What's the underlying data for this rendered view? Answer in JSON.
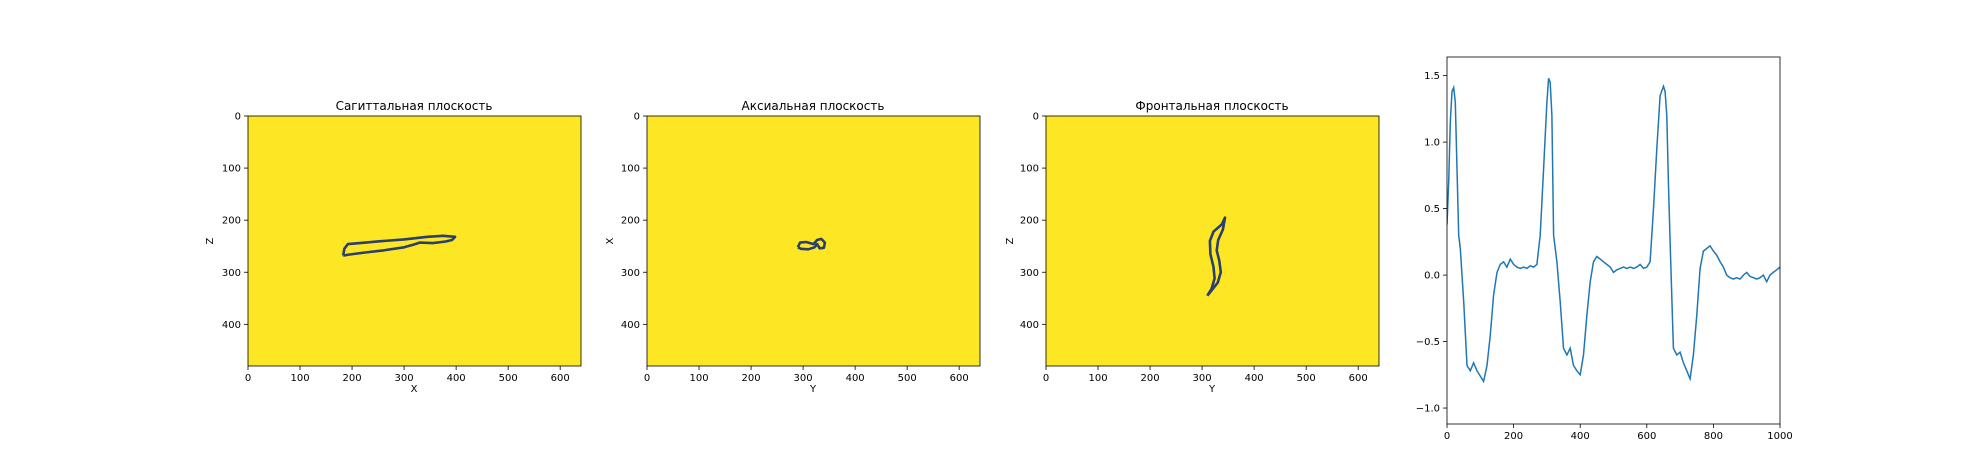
{
  "colors": {
    "background": "#ffffff",
    "image_fill": "#fde725",
    "contour": "#2a3f6b",
    "line": "#1f77b4"
  },
  "chart_data": [
    {
      "type": "heatmap",
      "title": "Сагиттальная плоскость",
      "xlabel": "X",
      "ylabel": "Z",
      "xlim": [
        0,
        640
      ],
      "ylim": [
        480,
        0
      ],
      "x_ticks": [
        "0",
        "100",
        "200",
        "300",
        "400",
        "500",
        "600"
      ],
      "y_ticks": [
        "0",
        "100",
        "200",
        "300",
        "400"
      ],
      "fill_value_color": "#fde725",
      "contour": [
        [
          183,
          268
        ],
        [
          185,
          255
        ],
        [
          192,
          246
        ],
        [
          215,
          244
        ],
        [
          260,
          240
        ],
        [
          300,
          237
        ],
        [
          345,
          232
        ],
        [
          375,
          230
        ],
        [
          398,
          232
        ],
        [
          392,
          238
        ],
        [
          380,
          241
        ],
        [
          355,
          244
        ],
        [
          330,
          243
        ],
        [
          318,
          247
        ],
        [
          300,
          252
        ],
        [
          260,
          258
        ],
        [
          225,
          262
        ],
        [
          195,
          266
        ],
        [
          183,
          268
        ]
      ]
    },
    {
      "type": "heatmap",
      "title": "Аксиальная плоскость",
      "xlabel": "Y",
      "ylabel": "X",
      "xlim": [
        0,
        640
      ],
      "ylim": [
        480,
        0
      ],
      "x_ticks": [
        "0",
        "100",
        "200",
        "300",
        "400",
        "500",
        "600"
      ],
      "y_ticks": [
        "0",
        "100",
        "200",
        "300",
        "400"
      ],
      "fill_value_color": "#fde725",
      "contour": [
        [
          290,
          252
        ],
        [
          294,
          243
        ],
        [
          306,
          242
        ],
        [
          320,
          246
        ],
        [
          327,
          238
        ],
        [
          335,
          236
        ],
        [
          342,
          243
        ],
        [
          340,
          253
        ],
        [
          332,
          254
        ],
        [
          327,
          246
        ],
        [
          322,
          252
        ],
        [
          310,
          256
        ],
        [
          296,
          255
        ],
        [
          290,
          252
        ]
      ]
    },
    {
      "type": "heatmap",
      "title": "Фронтальная плоскость",
      "xlabel": "Y",
      "ylabel": "Z",
      "xlim": [
        0,
        640
      ],
      "ylim": [
        480,
        0
      ],
      "x_ticks": [
        "0",
        "100",
        "200",
        "300",
        "400",
        "500",
        "600"
      ],
      "y_ticks": [
        "0",
        "100",
        "200",
        "300",
        "400"
      ],
      "fill_value_color": "#fde725",
      "contour": [
        [
          310,
          345
        ],
        [
          318,
          335
        ],
        [
          330,
          320
        ],
        [
          336,
          300
        ],
        [
          333,
          278
        ],
        [
          328,
          258
        ],
        [
          331,
          238
        ],
        [
          340,
          218
        ],
        [
          344,
          195
        ],
        [
          338,
          208
        ],
        [
          322,
          222
        ],
        [
          315,
          240
        ],
        [
          316,
          265
        ],
        [
          322,
          290
        ],
        [
          324,
          312
        ],
        [
          318,
          332
        ],
        [
          310,
          345
        ]
      ]
    },
    {
      "type": "line",
      "title": "",
      "xlabel": "",
      "ylabel": "",
      "xlim": [
        0,
        1000
      ],
      "ylim": [
        -1.12,
        1.64
      ],
      "x_ticks": [
        "0",
        "200",
        "400",
        "600",
        "800",
        "1000"
      ],
      "y_ticks": [
        "−1.0",
        "−0.5",
        "0.0",
        "0.5",
        "1.0",
        "1.5"
      ],
      "series": [
        {
          "x": [
            0,
            5,
            10,
            15,
            20,
            25,
            30,
            35,
            40,
            50,
            60,
            70,
            80,
            90,
            100,
            110,
            120,
            130,
            140,
            150,
            160,
            170,
            180,
            190,
            200,
            210,
            220,
            230,
            240,
            250,
            260,
            270,
            280,
            290,
            300,
            305,
            310,
            315,
            320,
            330,
            340,
            350,
            360,
            370,
            380,
            390,
            400,
            410,
            420,
            430,
            440,
            450,
            460,
            470,
            480,
            490,
            500,
            510,
            520,
            530,
            540,
            550,
            560,
            570,
            580,
            590,
            600,
            610,
            620,
            630,
            640,
            650,
            655,
            660,
            665,
            670,
            680,
            690,
            700,
            710,
            720,
            730,
            740,
            750,
            760,
            770,
            780,
            790,
            800,
            810,
            820,
            830,
            840,
            850,
            860,
            870,
            880,
            890,
            900,
            910,
            920,
            930,
            940,
            950,
            960,
            970,
            980,
            990,
            1000
          ],
          "y": [
            0.38,
            0.7,
            1.15,
            1.38,
            1.41,
            1.3,
            0.8,
            0.3,
            0.2,
            -0.2,
            -0.68,
            -0.72,
            -0.66,
            -0.72,
            -0.76,
            -0.8,
            -0.68,
            -0.45,
            -0.15,
            0.02,
            0.08,
            0.1,
            0.06,
            0.12,
            0.08,
            0.06,
            0.05,
            0.06,
            0.05,
            0.07,
            0.06,
            0.08,
            0.3,
            0.8,
            1.3,
            1.48,
            1.45,
            1.2,
            0.3,
            0.1,
            -0.2,
            -0.55,
            -0.6,
            -0.55,
            -0.68,
            -0.72,
            -0.75,
            -0.6,
            -0.3,
            -0.05,
            0.1,
            0.14,
            0.12,
            0.1,
            0.08,
            0.06,
            0.02,
            0.04,
            0.05,
            0.06,
            0.05,
            0.06,
            0.05,
            0.06,
            0.08,
            0.05,
            0.06,
            0.1,
            0.5,
            0.95,
            1.35,
            1.42,
            1.38,
            1.2,
            0.7,
            0.25,
            -0.55,
            -0.6,
            -0.58,
            -0.66,
            -0.72,
            -0.78,
            -0.6,
            -0.3,
            0.05,
            0.18,
            0.2,
            0.22,
            0.18,
            0.15,
            0.1,
            0.06,
            0.0,
            -0.02,
            -0.03,
            -0.02,
            -0.03,
            0.0,
            0.02,
            -0.01,
            -0.02,
            -0.03,
            -0.02,
            0.0,
            -0.05,
            0.0,
            0.02,
            0.04,
            0.06
          ]
        }
      ]
    }
  ]
}
